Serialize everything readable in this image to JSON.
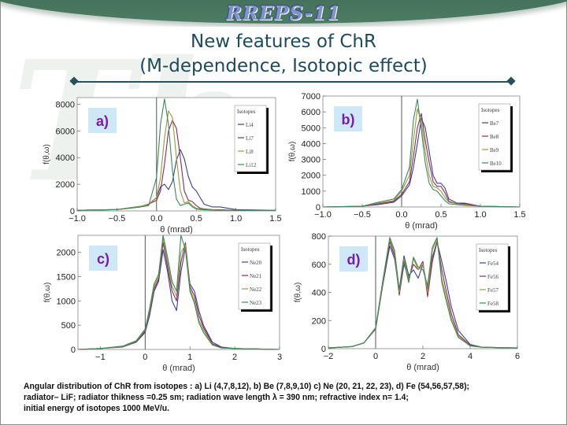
{
  "header": {
    "banner_title": "RREPS-11",
    "watermark": "Th"
  },
  "slide": {
    "title_line1": "New features of ChR",
    "title_line2": "(M-dependence, Isotopic effect)"
  },
  "caption": {
    "line1": "Angular distribution of ChR from isotopes : a) Li (4,7,8,12), b) Be (7,8,9,10) c) Ne (20, 21, 22, 23), d) Fe (54,56,57,58);",
    "line2": "radiator– LiF; radiator thikness =0.25 sm; radiation wave length λ = 390 nm; refractive index n= 1.4;",
    "line3": "initial energy of isotopes 1000 MeV/u."
  },
  "colors": {
    "series": [
      "#3b3f8f",
      "#8a2a5a",
      "#9a9a3a",
      "#3a8a5a"
    ],
    "panel_label_bg": "#cfe8f8",
    "panel_label_text": "#7a1aa8",
    "title": "#1e4a5a"
  },
  "chart_data": [
    {
      "type": "line",
      "panel": "a)",
      "title": "",
      "xlabel": "θ (mrad)",
      "ylabel": "f(θ,ω)",
      "xlim": [
        -1.0,
        1.5
      ],
      "ylim": [
        0,
        8500
      ],
      "xticks": [
        -1.0,
        -0.5,
        0.0,
        0.5,
        1.0,
        1.5
      ],
      "xtick_labels": [
        "−1.0",
        "−0.5",
        "0.0",
        "0.5",
        "1.0",
        "1.5"
      ],
      "yticks": [
        0,
        2000,
        4000,
        6000,
        8000
      ],
      "ytick_labels": [
        "0",
        "2000",
        "4000",
        "6000",
        "8000"
      ],
      "legend": {
        "title": "Isotopes",
        "entries": [
          "Li4",
          "Li7",
          "Li8",
          "Li12"
        ],
        "position": "upper right"
      },
      "x": [
        -1.0,
        -0.5,
        -0.2,
        -0.1,
        0.0,
        0.05,
        0.1,
        0.15,
        0.2,
        0.25,
        0.3,
        0.35,
        0.4,
        0.45,
        0.5,
        0.55,
        0.6,
        0.7,
        0.8,
        1.0,
        1.5
      ],
      "series": [
        {
          "name": "Li4",
          "values": [
            50,
            100,
            300,
            500,
            1000,
            1800,
            2000,
            1600,
            2200,
            3800,
            4600,
            3900,
            2600,
            1800,
            1500,
            1000,
            500,
            300,
            300,
            100,
            50
          ]
        },
        {
          "name": "Li7",
          "values": [
            50,
            100,
            350,
            500,
            800,
            1500,
            3500,
            6000,
            6800,
            6200,
            4000,
            1500,
            800,
            700,
            400,
            200,
            150,
            100,
            80,
            50,
            50
          ]
        },
        {
          "name": "Li8",
          "values": [
            50,
            100,
            350,
            450,
            1000,
            2500,
            5500,
            7500,
            7000,
            4000,
            1500,
            600,
            700,
            400,
            200,
            150,
            100,
            80,
            60,
            50,
            50
          ]
        },
        {
          "name": "Li12",
          "values": [
            50,
            100,
            300,
            400,
            2500,
            6500,
            8400,
            6500,
            3000,
            900,
            400,
            500,
            600,
            300,
            150,
            100,
            80,
            60,
            50,
            50,
            50
          ]
        }
      ]
    },
    {
      "type": "line",
      "panel": "b)",
      "title": "",
      "xlabel": "θ (mrad)",
      "ylabel": "f(θ,ω)",
      "xlim": [
        -1.0,
        1.5
      ],
      "ylim": [
        0,
        7000
      ],
      "xticks": [
        -1.0,
        -0.5,
        0.0,
        0.5,
        1.0,
        1.5
      ],
      "xtick_labels": [
        "−1.0",
        "−0.5",
        "0.0",
        "0.5",
        "1.0",
        "1.5"
      ],
      "yticks": [
        0,
        1000,
        2000,
        3000,
        4000,
        5000,
        6000,
        7000
      ],
      "ytick_labels": [
        "0",
        "1000",
        "2000",
        "3000",
        "4000",
        "5000",
        "6000",
        "7000"
      ],
      "legend": {
        "title": "Isotopes",
        "entries": [
          "Be7",
          "Be8",
          "Be9",
          "Be10"
        ],
        "position": "upper right"
      },
      "x": [
        -1.0,
        -0.5,
        -0.3,
        -0.1,
        0.0,
        0.1,
        0.15,
        0.2,
        0.25,
        0.3,
        0.35,
        0.4,
        0.45,
        0.5,
        0.55,
        0.6,
        0.7,
        0.8,
        1.0,
        1.5
      ],
      "series": [
        {
          "name": "Be7",
          "values": [
            0,
            50,
            150,
            300,
            700,
            1400,
            2500,
            4000,
            5600,
            5000,
            3500,
            2000,
            1500,
            1500,
            1200,
            500,
            250,
            250,
            50,
            0
          ]
        },
        {
          "name": "Be8",
          "values": [
            0,
            50,
            200,
            350,
            800,
            1600,
            3200,
            5000,
            5900,
            4200,
            2800,
            1600,
            1300,
            1300,
            900,
            350,
            200,
            200,
            50,
            0
          ]
        },
        {
          "name": "Be9",
          "values": [
            0,
            50,
            250,
            400,
            1000,
            2000,
            4200,
            6200,
            5400,
            3500,
            2000,
            1300,
            1200,
            1000,
            600,
            300,
            200,
            150,
            50,
            0
          ]
        },
        {
          "name": "Be10",
          "values": [
            0,
            50,
            300,
            500,
            1100,
            2500,
            5500,
            6800,
            4900,
            2800,
            1500,
            1100,
            1000,
            700,
            400,
            200,
            150,
            100,
            50,
            0
          ]
        }
      ]
    },
    {
      "type": "line",
      "panel": "c)",
      "title": "",
      "xlabel": "θ (mrad)",
      "ylabel": "f(θ,ω)",
      "xlim": [
        -1.5,
        3.0
      ],
      "ylim": [
        0,
        2350
      ],
      "xticks": [
        -1,
        0,
        1,
        2,
        3
      ],
      "xtick_labels": [
        "−1",
        "0",
        "1",
        "2",
        "3"
      ],
      "yticks": [
        0,
        500,
        1000,
        1500,
        2000
      ],
      "ytick_labels": [
        "0",
        "500",
        "1000",
        "1500",
        "2000"
      ],
      "legend": {
        "title": "Isotopes",
        "entries": [
          "Ne20",
          "Ne21",
          "Ne22",
          "Ne23"
        ],
        "position": "upper right"
      },
      "x": [
        -1.5,
        -1.0,
        -0.5,
        -0.2,
        0.0,
        0.1,
        0.2,
        0.3,
        0.4,
        0.5,
        0.6,
        0.7,
        0.8,
        0.9,
        1.0,
        1.1,
        1.2,
        1.3,
        1.5,
        1.7,
        2.0,
        3.0
      ],
      "series": [
        {
          "name": "Ne20",
          "values": [
            0,
            20,
            50,
            150,
            350,
            700,
            1200,
            1400,
            2050,
            1600,
            1000,
            800,
            1600,
            2100,
            1350,
            1200,
            800,
            500,
            150,
            50,
            20,
            0
          ]
        },
        {
          "name": "Ne21",
          "values": [
            0,
            20,
            60,
            160,
            380,
            750,
            1250,
            1450,
            2200,
            1700,
            1200,
            1000,
            1800,
            2200,
            1300,
            1100,
            700,
            450,
            120,
            40,
            20,
            0
          ]
        },
        {
          "name": "Ne22",
          "values": [
            0,
            20,
            60,
            170,
            400,
            800,
            1300,
            1500,
            2300,
            1800,
            1300,
            1100,
            2000,
            2150,
            1250,
            1000,
            600,
            400,
            100,
            30,
            20,
            0
          ]
        },
        {
          "name": "Ne23",
          "values": [
            0,
            20,
            70,
            180,
            420,
            850,
            1350,
            1550,
            2350,
            1900,
            1400,
            1200,
            2350,
            2050,
            1200,
            950,
            550,
            350,
            90,
            30,
            20,
            0
          ]
        }
      ]
    },
    {
      "type": "line",
      "panel": "d)",
      "title": "",
      "xlabel": "θ (mrad)",
      "ylabel": "f(θ,ω)",
      "xlim": [
        -2,
        6
      ],
      "ylim": [
        0,
        800
      ],
      "xticks": [
        -2,
        0,
        2,
        4,
        6
      ],
      "xtick_labels": [
        "−2",
        "0",
        "2",
        "4",
        "6"
      ],
      "yticks": [
        0,
        200,
        400,
        600,
        800
      ],
      "ytick_labels": [
        "0",
        "200",
        "400",
        "600",
        "800"
      ],
      "legend": {
        "title": "Isotopes",
        "entries": [
          "Fe54",
          "Fe56",
          "Fe57",
          "Fe58"
        ],
        "position": "upper right"
      },
      "x": [
        -2.0,
        -1.0,
        -0.5,
        0.0,
        0.3,
        0.6,
        0.8,
        1.0,
        1.2,
        1.4,
        1.6,
        1.8,
        2.0,
        2.2,
        2.4,
        2.6,
        2.8,
        3.0,
        3.2,
        3.5,
        4.0,
        4.5,
        6.0
      ],
      "series": [
        {
          "name": "Fe54",
          "values": [
            5,
            15,
            40,
            140,
            450,
            730,
            640,
            420,
            660,
            520,
            560,
            500,
            600,
            420,
            650,
            760,
            620,
            470,
            300,
            130,
            30,
            10,
            5
          ]
        },
        {
          "name": "Fe56",
          "values": [
            5,
            15,
            40,
            140,
            460,
            760,
            660,
            380,
            600,
            500,
            600,
            560,
            620,
            370,
            620,
            760,
            560,
            400,
            250,
            100,
            25,
            10,
            5
          ]
        },
        {
          "name": "Fe57",
          "values": [
            5,
            15,
            40,
            145,
            470,
            780,
            680,
            400,
            640,
            480,
            640,
            560,
            600,
            400,
            700,
            780,
            500,
            360,
            220,
            90,
            20,
            10,
            5
          ]
        },
        {
          "name": "Fe58",
          "values": [
            5,
            15,
            40,
            150,
            480,
            790,
            700,
            420,
            620,
            470,
            650,
            580,
            560,
            450,
            720,
            790,
            470,
            330,
            200,
            80,
            20,
            10,
            5
          ]
        }
      ]
    }
  ],
  "panels": [
    {
      "label": "a)"
    },
    {
      "label": "b)"
    },
    {
      "label": "c)"
    },
    {
      "label": "d)"
    }
  ]
}
